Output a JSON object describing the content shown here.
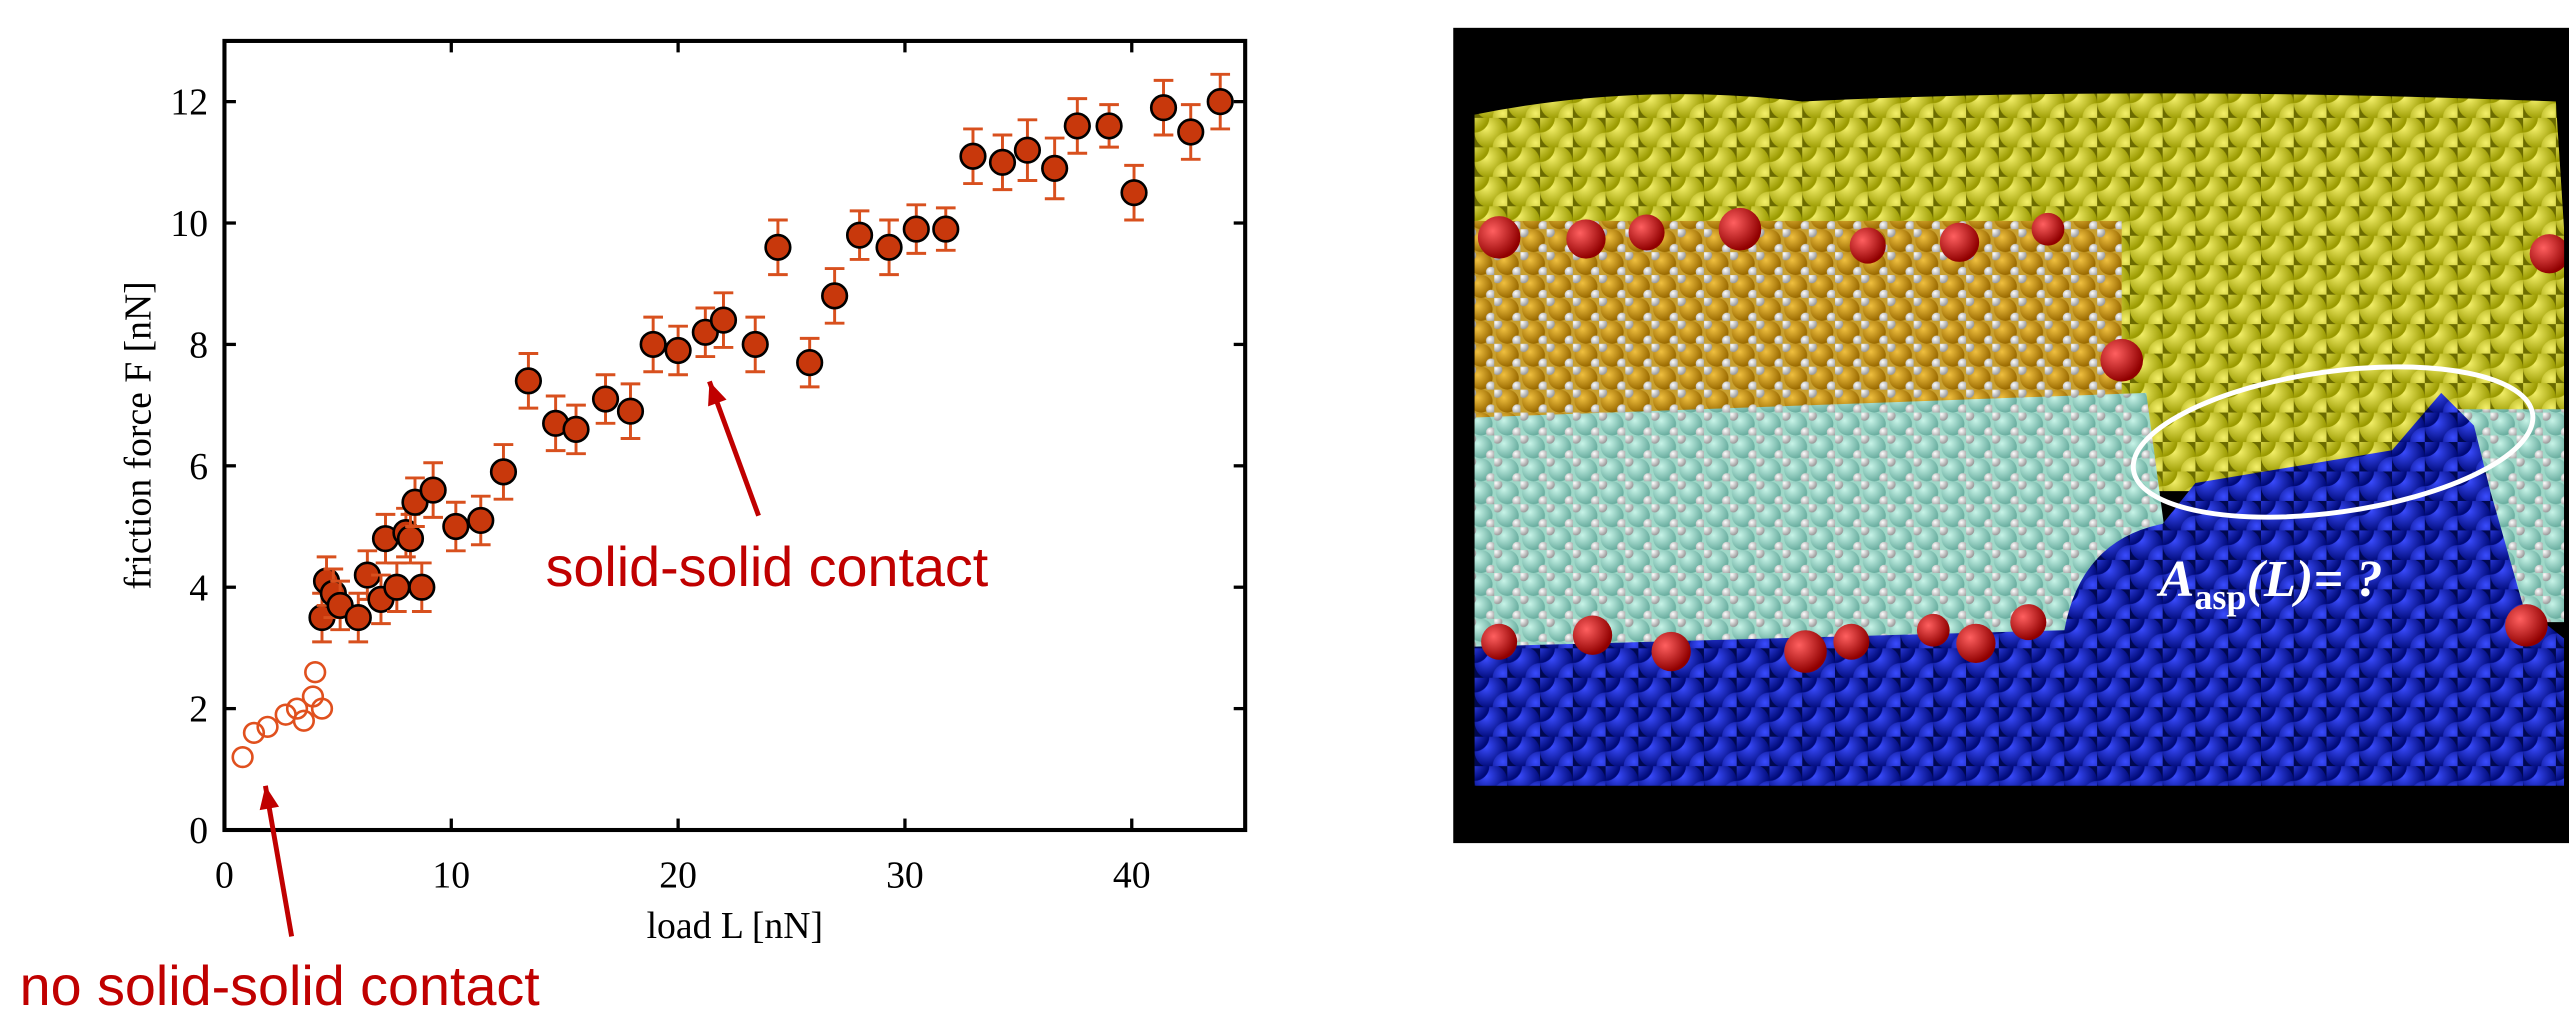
{
  "chart_data": {
    "type": "scatter",
    "x_label": "load L [nN]",
    "y_label": "friction force F [nN]",
    "xlim": [
      0,
      45
    ],
    "xticks": [
      0,
      10,
      20,
      30,
      40
    ],
    "ylim": [
      0,
      13
    ],
    "yticks": [
      0,
      2,
      4,
      6,
      8,
      10,
      12
    ],
    "annotations": [
      "solid-solid contact",
      "no solid-solid contact"
    ],
    "annotation_color": "#c00000",
    "series": [
      {
        "color": "#e0501e",
        "marker": "open",
        "x": [
          0.8,
          1.3,
          1.9,
          2.7,
          3.2,
          3.5,
          3.9,
          4.0,
          4.3
        ],
        "values": [
          1.2,
          1.6,
          1.7,
          1.9,
          2.0,
          1.8,
          2.2,
          2.6,
          2.0
        ]
      },
      {
        "color": "#c8380c",
        "error_color": "#d8501e",
        "marker": "filled",
        "x": [
          4.3,
          4.5,
          4.8,
          5.1,
          5.9,
          6.3,
          6.9,
          7.1,
          7.6,
          8.0,
          8.2,
          8.4,
          8.7,
          9.2,
          10.2,
          11.3,
          12.3,
          13.4,
          14.6,
          15.5,
          16.8,
          17.9,
          18.9,
          20.0,
          21.2,
          22.0,
          23.4,
          24.4,
          25.8,
          26.9,
          28.0,
          29.3,
          30.5,
          31.8,
          33.0,
          34.3,
          35.4,
          36.6,
          37.6,
          39.0,
          40.1,
          41.4,
          42.6,
          43.9
        ],
        "values": [
          3.5,
          4.1,
          3.9,
          3.7,
          3.5,
          4.2,
          3.8,
          4.8,
          4.0,
          4.9,
          4.8,
          5.4,
          4.0,
          5.6,
          5.0,
          5.1,
          5.9,
          7.4,
          6.7,
          6.6,
          7.1,
          6.9,
          8.0,
          7.9,
          8.2,
          8.4,
          8.0,
          9.6,
          7.7,
          8.8,
          9.8,
          9.6,
          9.9,
          9.9,
          11.1,
          11.0,
          11.2,
          10.9,
          11.6,
          11.6,
          10.5,
          11.9,
          11.5,
          12.0
        ],
        "errors": [
          0.4,
          0.4,
          0.4,
          0.4,
          0.4,
          0.4,
          0.4,
          0.4,
          0.4,
          0.4,
          0.4,
          0.4,
          0.4,
          0.45,
          0.4,
          0.4,
          0.45,
          0.45,
          0.45,
          0.4,
          0.4,
          0.45,
          0.45,
          0.4,
          0.4,
          0.45,
          0.45,
          0.45,
          0.4,
          0.45,
          0.4,
          0.45,
          0.4,
          0.35,
          0.45,
          0.45,
          0.5,
          0.5,
          0.45,
          0.35,
          0.45,
          0.45,
          0.45,
          0.45
        ]
      }
    ]
  },
  "figure": {
    "label_main": "A",
    "label_sub": "asp",
    "label_rest": "(L)= ?"
  }
}
